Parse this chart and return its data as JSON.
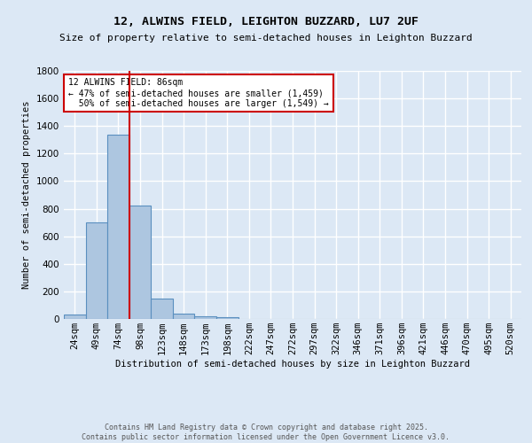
{
  "title": "12, ALWINS FIELD, LEIGHTON BUZZARD, LU7 2UF",
  "subtitle": "Size of property relative to semi-detached houses in Leighton Buzzard",
  "xlabel": "Distribution of semi-detached houses by size in Leighton Buzzard",
  "ylabel": "Number of semi-detached properties",
  "footer_line1": "Contains HM Land Registry data © Crown copyright and database right 2025.",
  "footer_line2": "Contains public sector information licensed under the Open Government Licence v3.0.",
  "categories": [
    "24sqm",
    "49sqm",
    "74sqm",
    "98sqm",
    "123sqm",
    "148sqm",
    "173sqm",
    "198sqm",
    "222sqm",
    "247sqm",
    "272sqm",
    "297sqm",
    "322sqm",
    "346sqm",
    "371sqm",
    "396sqm",
    "421sqm",
    "446sqm",
    "470sqm",
    "495sqm",
    "520sqm"
  ],
  "values": [
    35,
    700,
    1340,
    820,
    150,
    40,
    20,
    12,
    0,
    0,
    0,
    0,
    0,
    0,
    0,
    0,
    0,
    0,
    0,
    0,
    0
  ],
  "bar_color": "#adc6e0",
  "bar_edge_color": "#5a8fbf",
  "background_color": "#dce8f5",
  "grid_color": "#ffffff",
  "vline_index": 2.5,
  "vline_color": "#cc0000",
  "annotation_line1": "12 ALWINS FIELD: 86sqm",
  "annotation_line2": "← 47% of semi-detached houses are smaller (1,459)",
  "annotation_line3": "  50% of semi-detached houses are larger (1,549) →",
  "annotation_box_color": "#ffffff",
  "annotation_box_edge_color": "#cc0000",
  "ylim": [
    0,
    1800
  ],
  "yticks": [
    0,
    200,
    400,
    600,
    800,
    1000,
    1200,
    1400,
    1600,
    1800
  ],
  "title_fontsize": 9.5,
  "subtitle_fontsize": 8,
  "axis_label_fontsize": 7.5,
  "tick_fontsize": 7.5,
  "annotation_fontsize": 7,
  "footer_fontsize": 6
}
